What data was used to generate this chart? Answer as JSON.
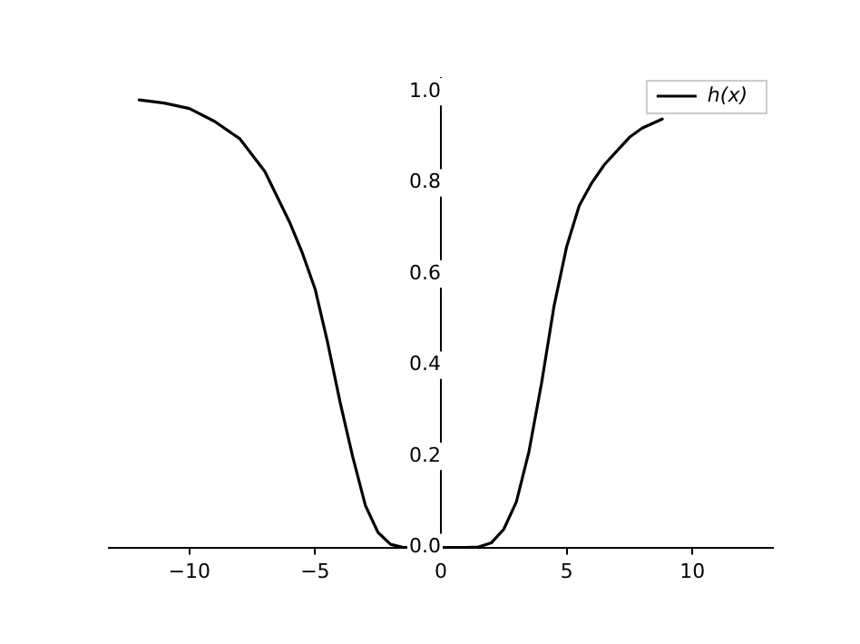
{
  "chart_data": {
    "type": "line",
    "xlim": [
      -13.2,
      13.2
    ],
    "ylim": [
      0,
      1.03
    ],
    "xticks": [
      -10,
      -5,
      0,
      5,
      10
    ],
    "yticks": [
      {
        "value": 0,
        "label": "0.0"
      },
      {
        "value": 0.2,
        "label": "0.2"
      },
      {
        "value": 0.4,
        "label": "0.4"
      },
      {
        "value": 0.6,
        "label": "0.6"
      },
      {
        "value": 0.8,
        "label": "0.8"
      },
      {
        "value": 1,
        "label": "1.0"
      }
    ],
    "grid": false,
    "legend": "top right",
    "marker": "none",
    "line_style": "solid",
    "series": [
      {
        "name": "h(x)",
        "color": "#000000",
        "x": [
          -12,
          -11,
          -10,
          -9,
          -8,
          -7,
          -6,
          -5.5,
          -5,
          -4.5,
          -4,
          -3.5,
          -3,
          -2.5,
          -2,
          -1.5,
          -1,
          0,
          1,
          1.5,
          2,
          2.5,
          3,
          3.5,
          4,
          4.5,
          5,
          5.5,
          6,
          6.5,
          7,
          7.5,
          8,
          8.8
        ],
        "values": [
          0.982,
          0.975,
          0.963,
          0.935,
          0.897,
          0.825,
          0.712,
          0.645,
          0.567,
          0.449,
          0.317,
          0.198,
          0.092,
          0.033,
          0.007,
          0,
          0,
          0,
          0,
          0.001,
          0.01,
          0.04,
          0.1,
          0.21,
          0.36,
          0.53,
          0.66,
          0.75,
          0.8,
          0.84,
          0.87,
          0.9,
          0.92,
          0.94
        ]
      }
    ]
  }
}
